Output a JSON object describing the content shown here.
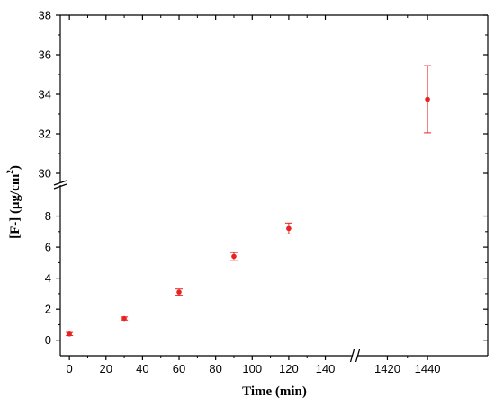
{
  "chart_data": {
    "type": "scatter",
    "xlabel": "Time (min)",
    "ylabel": "[F-] (μg/cm",
    "ylabel_superscript": "2",
    "ylabel_close": ")",
    "x_segments": [
      {
        "range": [
          -5,
          155
        ],
        "ticks": [
          0,
          20,
          40,
          60,
          80,
          100,
          120,
          140
        ]
      },
      {
        "range": [
          1405,
          1470
        ],
        "ticks": [
          1420,
          1440
        ]
      }
    ],
    "y_segments": [
      {
        "range": [
          -1,
          10
        ],
        "ticks": [
          0,
          2,
          4,
          6,
          8
        ]
      },
      {
        "range": [
          29.5,
          38
        ],
        "ticks": [
          30,
          32,
          34,
          36,
          38
        ]
      }
    ],
    "x_tick_labels": [
      "0",
      "20",
      "40",
      "60",
      "80",
      "100",
      "120",
      "140",
      "1420",
      "1440"
    ],
    "y_tick_labels": [
      "0",
      "2",
      "4",
      "6",
      "8",
      "30",
      "32",
      "34",
      "36",
      "38"
    ],
    "color": "#e8231f",
    "series": [
      {
        "points": [
          {
            "x": 0,
            "y": 0.4,
            "err": 0.1
          },
          {
            "x": 30,
            "y": 1.4,
            "err": 0.1
          },
          {
            "x": 60,
            "y": 3.1,
            "err": 0.2
          },
          {
            "x": 90,
            "y": 5.4,
            "err": 0.25
          },
          {
            "x": 120,
            "y": 7.2,
            "err": 0.35
          },
          {
            "x": 1440,
            "y": 33.75,
            "err": 1.7
          }
        ]
      }
    ]
  }
}
